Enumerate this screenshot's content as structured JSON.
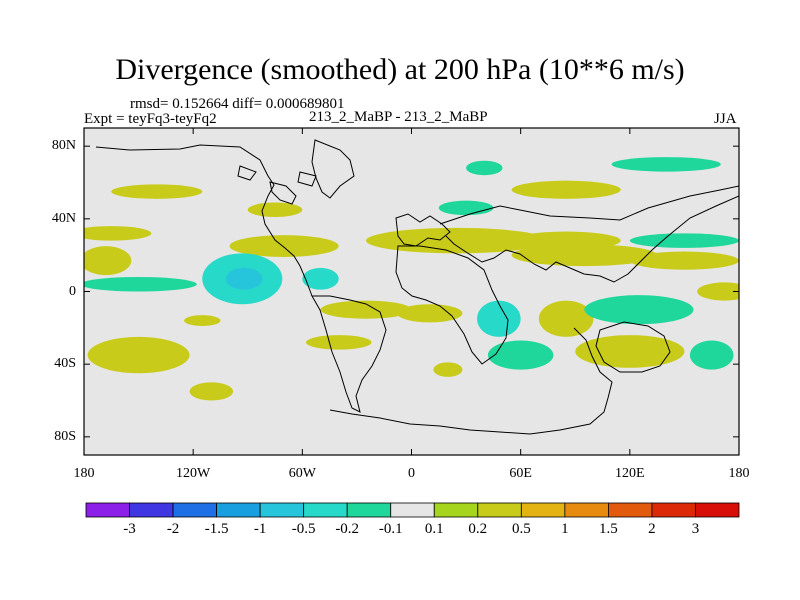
{
  "chart_data": {
    "type": "heatmap",
    "title": "Divergence (smoothed) at 200 hPa (10**6 m/s)",
    "stats": "rmsd= 0.152664 diff= 0.000689801",
    "experiment": "Expt = teyFq3-teyFq2",
    "comparison": "213_2_MaBP - 213_2_MaBP",
    "season": "JJA",
    "x_ticks": [
      "180",
      "120W",
      "60W",
      "0",
      "60E",
      "120E",
      "180"
    ],
    "x_tick_values": [
      -180,
      -120,
      -60,
      0,
      60,
      120,
      180
    ],
    "y_ticks": [
      "80N",
      "40N",
      "0",
      "40S",
      "80S"
    ],
    "y_tick_values": [
      80,
      40,
      0,
      -40,
      -80
    ],
    "xlim": [
      -180,
      180
    ],
    "ylim": [
      -90,
      90
    ],
    "colorbar": {
      "labels": [
        "-3",
        "-2",
        "-1.5",
        "-1",
        "-0.5",
        "-0.2",
        "-0.1",
        "0.1",
        "0.2",
        "0.5",
        "1",
        "1.5",
        "2",
        "3"
      ],
      "colors": [
        "#8c20e8",
        "#4036e2",
        "#1e6ee6",
        "#189fdf",
        "#26c5dc",
        "#27d9c9",
        "#1fd79a",
        "#e6e6e6",
        "#a5d51c",
        "#c9cb1a",
        "#e2b313",
        "#e78b10",
        "#e25a0c",
        "#dc2a08",
        "#d80f08"
      ]
    },
    "regions": [
      {
        "lon": 25,
        "lat": 28,
        "rx": 50,
        "ry": 7,
        "value": 0.2
      },
      {
        "lon": -70,
        "lat": 25,
        "rx": 30,
        "ry": 6,
        "value": 0.2
      },
      {
        "lon": -165,
        "lat": 32,
        "rx": 22,
        "ry": 4,
        "value": 0.2
      },
      {
        "lon": 85,
        "lat": 28,
        "rx": 30,
        "ry": 5,
        "value": 0.2
      },
      {
        "lon": 95,
        "lat": 20,
        "rx": 40,
        "ry": 6,
        "value": 0.2
      },
      {
        "lon": 150,
        "lat": 28,
        "rx": 30,
        "ry": 4,
        "value": -0.2
      },
      {
        "lon": 150,
        "lat": 17,
        "rx": 30,
        "ry": 5,
        "value": 0.2
      },
      {
        "lon": -150,
        "lat": 4,
        "rx": 32,
        "ry": 4,
        "value": -0.2
      },
      {
        "lon": -168,
        "lat": 17,
        "rx": 14,
        "ry": 8,
        "value": 0.2
      },
      {
        "lon": -93,
        "lat": 7,
        "rx": 22,
        "ry": 14,
        "value": -0.5
      },
      {
        "lon": -92,
        "lat": 7,
        "rx": 10,
        "ry": 6,
        "value": -1
      },
      {
        "lon": -50,
        "lat": 7,
        "rx": 10,
        "ry": 6,
        "value": -0.5
      },
      {
        "lon": -115,
        "lat": -16,
        "rx": 10,
        "ry": 3,
        "value": 0.2
      },
      {
        "lon": -25,
        "lat": -10,
        "rx": 25,
        "ry": 5,
        "value": 0.2
      },
      {
        "lon": 10,
        "lat": -12,
        "rx": 18,
        "ry": 5,
        "value": 0.2
      },
      {
        "lon": 48,
        "lat": -15,
        "rx": 12,
        "ry": 10,
        "value": -0.5
      },
      {
        "lon": 85,
        "lat": -15,
        "rx": 15,
        "ry": 10,
        "value": 0.2
      },
      {
        "lon": 125,
        "lat": -10,
        "rx": 30,
        "ry": 8,
        "value": -0.2
      },
      {
        "lon": 172,
        "lat": 0,
        "rx": 15,
        "ry": 5,
        "value": 0.2
      },
      {
        "lon": -150,
        "lat": -35,
        "rx": 28,
        "ry": 10,
        "value": 0.2
      },
      {
        "lon": -110,
        "lat": -55,
        "rx": 12,
        "ry": 5,
        "value": 0.2
      },
      {
        "lon": -40,
        "lat": -28,
        "rx": 18,
        "ry": 4,
        "value": 0.2
      },
      {
        "lon": 60,
        "lat": -35,
        "rx": 18,
        "ry": 8,
        "value": -0.2
      },
      {
        "lon": 120,
        "lat": -33,
        "rx": 30,
        "ry": 9,
        "value": 0.2
      },
      {
        "lon": 165,
        "lat": -35,
        "rx": 12,
        "ry": 8,
        "value": -0.2
      },
      {
        "lon": 20,
        "lat": -43,
        "rx": 8,
        "ry": 4,
        "value": 0.2
      },
      {
        "lon": -140,
        "lat": 55,
        "rx": 25,
        "ry": 4,
        "value": 0.2
      },
      {
        "lon": -75,
        "lat": 45,
        "rx": 15,
        "ry": 4,
        "value": 0.2
      },
      {
        "lon": 30,
        "lat": 46,
        "rx": 15,
        "ry": 4,
        "value": -0.2
      },
      {
        "lon": 85,
        "lat": 56,
        "rx": 30,
        "ry": 5,
        "value": 0.2
      },
      {
        "lon": 140,
        "lat": 70,
        "rx": 30,
        "ry": 4,
        "value": -0.2
      },
      {
        "lon": 40,
        "lat": 68,
        "rx": 10,
        "ry": 4,
        "value": -0.2
      }
    ]
  }
}
